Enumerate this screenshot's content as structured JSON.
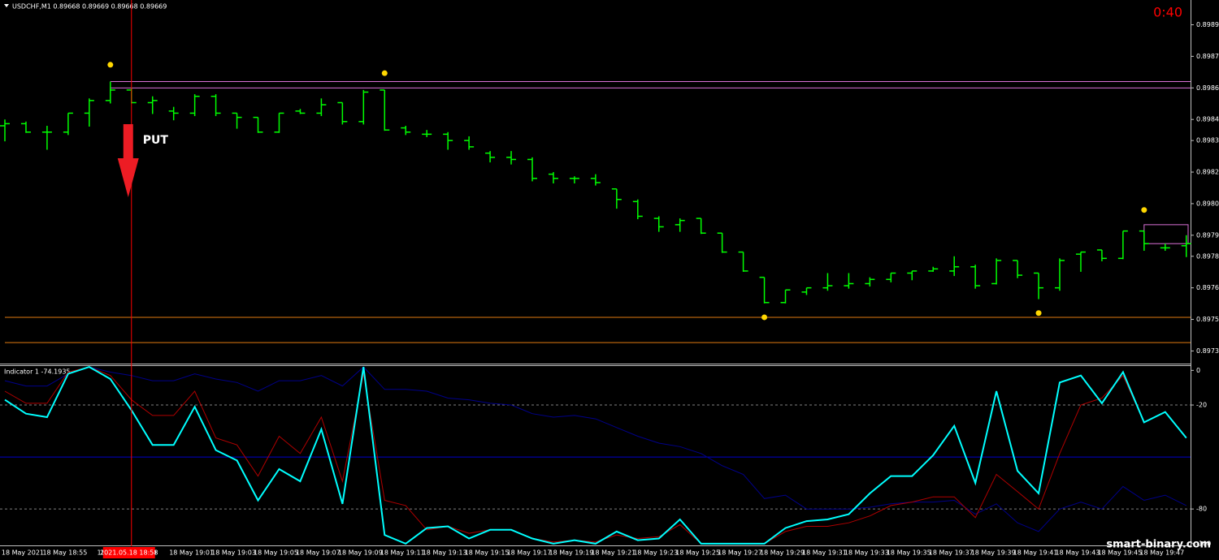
{
  "chart_data": [
    {
      "type": "ohlc",
      "title": "USDCHF,M1  0.89668 0.89669 0.89668 0.89669",
      "timer": "0:40",
      "signal": "PUT",
      "crosshair": {
        "x": 6,
        "label": "2021.05.18 18:58",
        "color": "#ff0000"
      },
      "color": "#00ff00",
      "categories": [
        null,
        "18 May 2021",
        null,
        "18 May 18:55",
        null,
        "18 Ma",
        null,
        "8:59",
        null,
        "18 May 19:01",
        null,
        "18 May 19:03",
        null,
        "18 May 19:05",
        null,
        "18 May 19:07",
        null,
        "18 May 19:09",
        null,
        "18 May 19:11",
        null,
        "18 May 19:13",
        null,
        "18 May 19:15",
        null,
        "18 May 19:17",
        null,
        "18 May 19:19",
        null,
        "18 May 19:21",
        null,
        "18 May 19:23",
        null,
        "18 May 19:25",
        null,
        "18 May 19:27",
        null,
        "18 May 19:29",
        null,
        "18 May 19:31",
        null,
        "18 May 19:33",
        null,
        "18 May 19:35",
        null,
        "18 May 19:37",
        null,
        "18 May 19:39",
        null,
        "18 May 19:41",
        null,
        "18 May 19:43",
        null,
        "18 May 19:45",
        null,
        "18 May 19:47",
        null
      ],
      "open": [
        0.89842,
        0.89843,
        0.89839,
        0.89839,
        0.89848,
        0.89854,
        0.89859,
        0.89853,
        0.89849,
        0.89848,
        0.89856,
        0.89848,
        0.89846,
        0.89839,
        0.89849,
        0.89848,
        0.89853,
        0.89844,
        0.89859,
        0.89841,
        0.89838,
        0.89838,
        0.89835,
        0.89829,
        0.89827,
        0.89826,
        0.89819,
        0.89817,
        0.89817,
        0.89812,
        0.89806,
        0.89798,
        0.89795,
        0.89798,
        0.89791,
        0.89782,
        0.8977,
        0.89758,
        0.89763,
        0.89765,
        0.89766,
        0.89767,
        0.89769,
        0.89772,
        0.89773,
        0.89773,
        0.89775,
        0.89767,
        0.89778,
        0.89772,
        0.89765,
        0.89781,
        0.89783,
        0.89779,
        0.89792,
        0.89784,
        0.89785
      ],
      "high": [
        0.89845,
        0.89844,
        0.89842,
        0.89848,
        0.89855,
        0.89863,
        0.8986,
        0.89856,
        0.89851,
        0.89857,
        0.89857,
        0.89848,
        0.89846,
        0.89848,
        0.8985,
        0.89855,
        0.89853,
        0.89859,
        0.89859,
        0.89842,
        0.8984,
        0.89839,
        0.89837,
        0.8983,
        0.8983,
        0.89827,
        0.8982,
        0.89818,
        0.89819,
        0.89812,
        0.89807,
        0.89799,
        0.89798,
        0.89798,
        0.89791,
        0.89782,
        0.8977,
        0.89764,
        0.89765,
        0.89772,
        0.89772,
        0.8977,
        0.89772,
        0.89773,
        0.89775,
        0.8978,
        0.89776,
        0.89779,
        0.89778,
        0.89772,
        0.89779,
        0.89782,
        0.89783,
        0.89792,
        0.89792,
        0.89786,
        0.8979
      ],
      "low": [
        0.89835,
        0.89839,
        0.89831,
        0.89838,
        0.89842,
        0.89853,
        0.89853,
        0.89848,
        0.89845,
        0.89847,
        0.89847,
        0.89841,
        0.89839,
        0.89839,
        0.89848,
        0.89847,
        0.89843,
        0.89843,
        0.8984,
        0.89838,
        0.89837,
        0.89831,
        0.89831,
        0.89825,
        0.89824,
        0.89816,
        0.89815,
        0.89815,
        0.89814,
        0.89803,
        0.89798,
        0.89792,
        0.89792,
        0.89791,
        0.89782,
        0.89773,
        0.89758,
        0.89758,
        0.89762,
        0.89764,
        0.89765,
        0.89766,
        0.89768,
        0.89769,
        0.89773,
        0.89771,
        0.89765,
        0.89767,
        0.8977,
        0.8976,
        0.89764,
        0.89773,
        0.89778,
        0.89779,
        0.89783,
        0.89783,
        0.8978
      ],
      "close": [
        0.89843,
        0.89839,
        0.89839,
        0.89848,
        0.89854,
        0.89859,
        0.89853,
        0.89854,
        0.89848,
        0.89856,
        0.89848,
        0.89846,
        0.89839,
        0.89848,
        0.89848,
        0.89852,
        0.89844,
        0.89858,
        0.8984,
        0.89839,
        0.89838,
        0.89835,
        0.89832,
        0.89827,
        0.89826,
        0.89817,
        0.89817,
        0.89817,
        0.89815,
        0.89807,
        0.89799,
        0.89794,
        0.89797,
        0.89791,
        0.89782,
        0.89773,
        0.89758,
        0.89764,
        0.89765,
        0.89766,
        0.89767,
        0.89769,
        0.89772,
        0.89773,
        0.89774,
        0.89775,
        0.89766,
        0.89778,
        0.89771,
        0.89765,
        0.89778,
        0.89782,
        0.89779,
        0.89792,
        0.89786,
        0.89784,
        0.89786
      ],
      "markers": {
        "color": "#ffd700",
        "points": [
          {
            "x": 5,
            "value": 0.89871
          },
          {
            "x": 18,
            "value": 0.89867
          },
          {
            "x": 36,
            "value": 0.89751
          },
          {
            "x": 49,
            "value": 0.89753
          },
          {
            "x": 54,
            "value": 0.89802
          }
        ]
      },
      "levels": [
        {
          "value": 0.89863,
          "color": "#da70d6",
          "from": 5
        },
        {
          "value": 0.8986,
          "color": "#da70d6",
          "from": 5
        },
        {
          "value": 0.89751,
          "color": "#e07a10",
          "from": 0
        },
        {
          "value": 0.89739,
          "color": "#e07a10",
          "from": 0
        }
      ],
      "box": {
        "from": 54,
        "top": 0.89795,
        "bottom": 0.89786,
        "color": "#da70d6"
      },
      "ylim": [
        0.89729,
        0.89901
      ],
      "yticks": [
        {
          "value": 0.8989,
          "label": "0.89890"
        },
        0.89875,
        {
          "value": 0.8986,
          "label": "0.89860"
        },
        0.89845,
        0.89835,
        {
          "value": 0.8982,
          "label": "0.89820"
        },
        0.89805,
        {
          "value": 0.8979,
          "label": "0.89790"
        },
        {
          "value": 0.8978,
          "label": "0.89780"
        },
        0.89765,
        {
          "value": 0.8975,
          "label": "0.89750"
        },
        0.89735
      ]
    },
    {
      "type": "line",
      "title": "Indicator 1 -74.1935",
      "series": [
        {
          "color": "#00008b",
          "values": [
            -6,
            -9,
            -9,
            -2,
            2,
            -1,
            -3,
            -6,
            -6,
            -2,
            -5,
            -7,
            -12,
            -6,
            -6,
            -3,
            -9,
            2,
            -11,
            -11,
            -12,
            -16,
            -17,
            -19,
            -20,
            -25,
            -27,
            -26,
            -28,
            -33,
            -38,
            -42,
            -44,
            -48,
            -55,
            -60,
            -74,
            -72,
            -80,
            -80,
            -80,
            -79,
            -77,
            -76,
            -76,
            -75,
            -83,
            -77,
            -88,
            -93,
            -80,
            -76,
            -80,
            -67,
            -75,
            -72,
            -78
          ]
        },
        {
          "color": "#b00000",
          "values": [
            -12,
            -19,
            -19,
            -1,
            2,
            -3,
            -17,
            -26,
            -26,
            -12,
            -39,
            -43,
            -61,
            -38,
            -48,
            -27,
            -64,
            -2,
            -75,
            -78,
            -92,
            -90,
            -94,
            -92,
            -92,
            -97,
            -99,
            -98,
            -99,
            -95,
            -97,
            -96,
            -89,
            -100,
            -100,
            -100,
            -100,
            -93,
            -90,
            -90,
            -88,
            -84,
            -78,
            -76,
            -73,
            -73,
            -85,
            -60,
            -70,
            -80,
            -48,
            -20,
            -16,
            -3,
            -30,
            -24,
            -39
          ]
        },
        {
          "color": "#00ffff",
          "values": [
            -17,
            -25,
            -27,
            -2,
            2,
            -5,
            -23,
            -43,
            -43,
            -21,
            -46,
            -52,
            -75,
            -57,
            -64,
            -34,
            -77,
            2,
            -95,
            -100,
            -91,
            -90,
            -97,
            -92,
            -92,
            -97,
            -100,
            -98,
            -100,
            -93,
            -98,
            -97,
            -86,
            -100,
            -100,
            -100,
            -100,
            -91,
            -87,
            -86,
            -83,
            -71,
            -61,
            -61,
            -49,
            -32,
            -65,
            -12,
            -58,
            -71,
            -7,
            -3,
            -19,
            -1,
            -30,
            -24,
            -39
          ]
        }
      ],
      "levels": [
        {
          "value": -20,
          "color": "#808080",
          "style": "dashed"
        },
        {
          "value": -50,
          "color": "#0000cd",
          "style": "solid"
        },
        {
          "value": -80,
          "color": "#808080",
          "style": "dashed"
        }
      ],
      "ylim": [
        -101,
        2.5
      ],
      "yticks": [
        0,
        -20,
        -80,
        -100
      ]
    }
  ],
  "watermark": "smart-binary.com"
}
